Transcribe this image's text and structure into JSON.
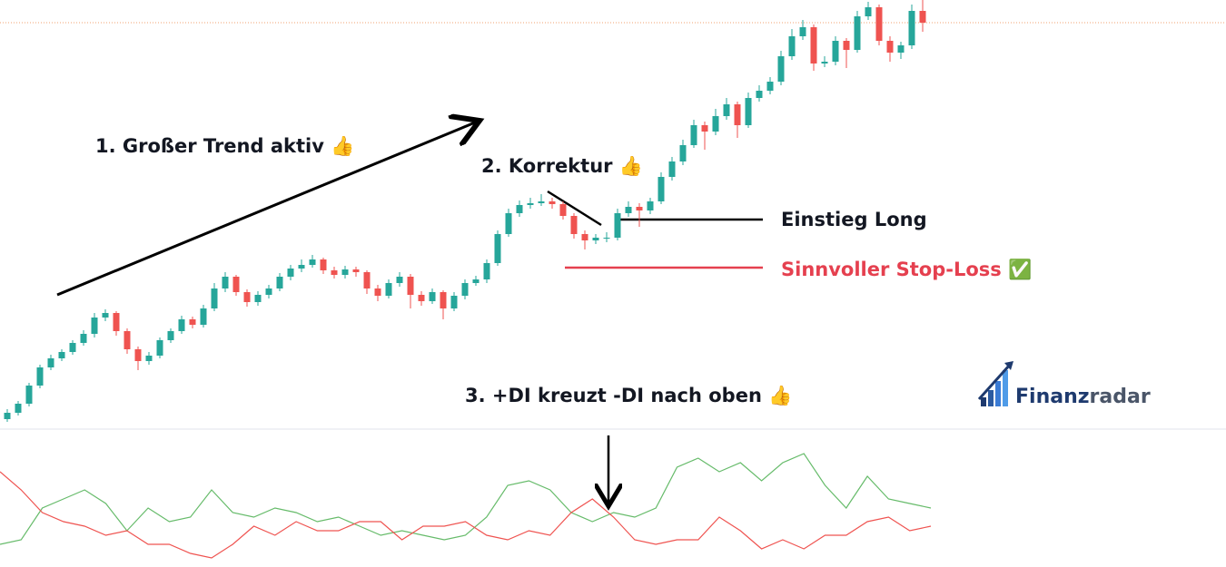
{
  "chart_data": [
    {
      "type": "candlestick",
      "color_up": "#26a69a",
      "color_down": "#ef5350",
      "ylim": [
        0,
        470
      ],
      "open": [
        8,
        15,
        25,
        45,
        65,
        75,
        82,
        92,
        102,
        120,
        125,
        105,
        85,
        72,
        78,
        95,
        105,
        118,
        112,
        130,
        152,
        165,
        148,
        137,
        145,
        152,
        165,
        174,
        178,
        184,
        172,
        167,
        173,
        170,
        152,
        144,
        158,
        165,
        145,
        138,
        148,
        130,
        144,
        158,
        162,
        180,
        212,
        235,
        244,
        246,
        248,
        245,
        232,
        212,
        205,
        208,
        208,
        235,
        242,
        238,
        248,
        275,
        292,
        310,
        332,
        325,
        342,
        355,
        332,
        362,
        370,
        380,
        408,
        430,
        440,
        400,
        402,
        425,
        415,
        452,
        462,
        425,
        412,
        420,
        458
      ],
      "high": [
        19,
        28,
        48,
        68,
        79,
        85,
        95,
        106,
        125,
        129,
        127,
        108,
        88,
        82,
        98,
        108,
        122,
        121,
        134,
        158,
        170,
        167,
        151,
        149,
        156,
        169,
        178,
        184,
        189,
        186,
        176,
        177,
        176,
        172,
        156,
        162,
        170,
        168,
        149,
        152,
        150,
        148,
        162,
        166,
        184,
        216,
        240,
        249,
        252,
        256,
        252,
        248,
        235,
        216,
        212,
        214,
        240,
        248,
        246,
        252,
        280,
        297,
        316,
        338,
        336,
        350,
        362,
        358,
        368,
        376,
        385,
        414,
        438,
        448,
        443,
        408,
        430,
        428,
        458,
        468,
        465,
        430,
        424,
        465,
        470
      ],
      "low": [
        5,
        12,
        22,
        42,
        62,
        72,
        79,
        89,
        98,
        116,
        100,
        80,
        62,
        68,
        75,
        92,
        102,
        108,
        109,
        127,
        148,
        144,
        132,
        133,
        141,
        149,
        161,
        170,
        175,
        168,
        163,
        163,
        165,
        146,
        138,
        141,
        154,
        130,
        133,
        135,
        118,
        127,
        140,
        155,
        158,
        177,
        209,
        231,
        240,
        243,
        240,
        228,
        207,
        195,
        201,
        203,
        205,
        231,
        220,
        234,
        245,
        271,
        288,
        307,
        305,
        321,
        338,
        318,
        329,
        358,
        366,
        376,
        404,
        426,
        392,
        396,
        398,
        395,
        412,
        448,
        420,
        402,
        405,
        416,
        435
      ],
      "close": [
        15,
        25,
        45,
        65,
        75,
        82,
        92,
        102,
        120,
        125,
        105,
        85,
        72,
        78,
        95,
        105,
        118,
        112,
        130,
        152,
        165,
        148,
        137,
        145,
        152,
        165,
        174,
        178,
        184,
        172,
        167,
        173,
        170,
        152,
        144,
        158,
        165,
        145,
        138,
        148,
        130,
        144,
        158,
        162,
        180,
        212,
        235,
        244,
        246,
        248,
        245,
        232,
        212,
        205,
        208,
        208,
        235,
        242,
        238,
        248,
        275,
        292,
        310,
        332,
        325,
        342,
        355,
        332,
        362,
        370,
        380,
        408,
        430,
        440,
        400,
        402,
        425,
        415,
        452,
        462,
        425,
        412,
        420,
        458,
        445
      ],
      "annotations": [
        "1. Großer Trend aktiv 👍",
        "2. Korrektur 👍",
        "Einstieg Long",
        "Sinnvoller Stop-Loss ✅",
        "3. +DI kreuzt -DI nach oben 👍"
      ]
    },
    {
      "type": "line",
      "ylim": [
        0,
        140
      ],
      "series": [
        {
          "color": "#66bb6a",
          "values": [
            25,
            30,
            65,
            75,
            85,
            70,
            40,
            65,
            50,
            55,
            85,
            60,
            55,
            65,
            60,
            50,
            55,
            45,
            35,
            40,
            35,
            30,
            35,
            55,
            90,
            95,
            85,
            60,
            50,
            60,
            55,
            65,
            110,
            120,
            105,
            115,
            95,
            115,
            125,
            90,
            65,
            100,
            75,
            70,
            65
          ]
        },
        {
          "color": "#ef5350",
          "values": [
            105,
            85,
            60,
            50,
            45,
            35,
            40,
            25,
            25,
            15,
            10,
            25,
            45,
            35,
            50,
            40,
            40,
            50,
            50,
            30,
            45,
            45,
            50,
            35,
            30,
            40,
            35,
            60,
            75,
            55,
            30,
            25,
            30,
            30,
            55,
            40,
            20,
            30,
            20,
            35,
            35,
            50,
            55,
            40,
            45
          ]
        }
      ]
    }
  ],
  "logo": {
    "part1": "Finanz",
    "part2": "radar"
  }
}
